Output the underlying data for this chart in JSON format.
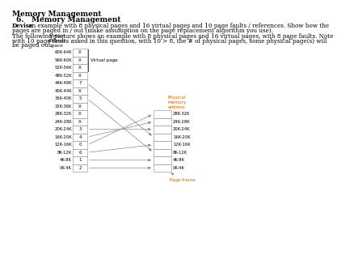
{
  "title": "Memory Management",
  "heading": "6.   Memory Management",
  "p1_bold": "Devise",
  "p1_rest": " an example with 8 physical pages and 16 virtual pages and 10 page faults / references. Show how the\npages are paged in / out (make assumption on the page replacement algorithm you use).",
  "paragraph2_line1": "The following picture shows an example with 8 physical pages and 16 virtual pages, with 8 page faults. Note",
  "paragraph2_line2": "with 10 page faults asked in this question, with 10 > 8, the # of physical pages, some physical page(s) will",
  "paragraph2_line3": "be paged out.",
  "virtual_label": "Virtual\naddress\nspace",
  "physical_label": "Physical\nmemory\naddress",
  "page_frame_label": "Page frame",
  "virtual_page_label": "Virtual page",
  "virtual_rows": [
    {
      "range": "60K-64K",
      "value": "X"
    },
    {
      "range": "56K-60K",
      "value": "X"
    },
    {
      "range": "52K-56K",
      "value": "X"
    },
    {
      "range": "48K-52K",
      "value": "X"
    },
    {
      "range": "44K-48K",
      "value": "7"
    },
    {
      "range": "40K-44K",
      "value": "X"
    },
    {
      "range": "36K-40K",
      "value": "5"
    },
    {
      "range": "32K-36K",
      "value": "X"
    },
    {
      "range": "28K-32K",
      "value": "X"
    },
    {
      "range": "24K-28K",
      "value": "X"
    },
    {
      "range": "20K-24K",
      "value": "3"
    },
    {
      "range": "16K-20K",
      "value": "4"
    },
    {
      "range": "12K-16K",
      "value": "0"
    },
    {
      "range": "8K-12K",
      "value": "6"
    },
    {
      "range": "4K-8K",
      "value": "1"
    },
    {
      "range": "0K-4K",
      "value": "2"
    }
  ],
  "physical_rows": [
    {
      "range": "28K-32K"
    },
    {
      "range": "24K-28K"
    },
    {
      "range": "20K-24K"
    },
    {
      "range": "16K-20K"
    },
    {
      "range": "12K-16K"
    },
    {
      "range": "8K-12K"
    },
    {
      "range": "4K-8K"
    },
    {
      "range": "0K-4K"
    }
  ],
  "arrow_connections": [
    {
      "from_virt": 4,
      "to_phys": 3
    },
    {
      "from_virt": 6,
      "to_phys": 5
    },
    {
      "from_virt": 10,
      "to_phys": 2
    },
    {
      "from_virt": 11,
      "to_phys": 1
    },
    {
      "from_virt": 12,
      "to_phys": 0
    },
    {
      "from_virt": 13,
      "to_phys": 4
    },
    {
      "from_virt": 14,
      "to_phys": 6
    },
    {
      "from_virt": 15,
      "to_phys": 7
    }
  ],
  "bg_color": "#ffffff",
  "box_edge_color": "#888888",
  "text_color": "#000000",
  "arrow_color": "#888888",
  "label_color": "#cc6600",
  "title_fontsize": 6.5,
  "body_fontsize": 5.2,
  "cell_fontsize": 4.5,
  "label_fontsize": 4.0,
  "diag_label_fontsize": 4.2
}
